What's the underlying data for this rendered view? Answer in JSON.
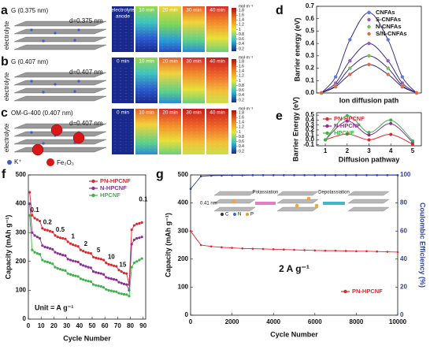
{
  "panels": [
    {
      "label": "a",
      "title": "G (0.375 nm)",
      "side_label": "electrolyte",
      "spacing": "d=0.375 nm",
      "tiles": [
        "electrolyte",
        "10 min",
        "20 min",
        "30 min",
        "40 min"
      ],
      "tile_note": "anode"
    },
    {
      "label": "b",
      "title": "G (0.407 nm)",
      "side_label": "electrolyte",
      "spacing": "d=0.407 nm",
      "tiles": [
        "0 min",
        "10 min",
        "20 min",
        "30 min",
        "40 min"
      ]
    },
    {
      "label": "c",
      "title": "OM-G-400 (0.407 nm)",
      "side_label": "electrolyte",
      "spacing": "d=0.407 nm",
      "tiles": [
        "0 min",
        "10 min",
        "20 min",
        "30 min",
        "40 min"
      ]
    }
  ],
  "colorbar": {
    "unit": "mol·m⁻³",
    "lim": [
      0.1,
      1.9
    ],
    "ticks": [
      1.8,
      1.6,
      1.4,
      1.2,
      1,
      0.8,
      0.6,
      0.4,
      0.2
    ]
  },
  "legend": [
    "K⁺",
    "Fe₂O₃"
  ],
  "chart_data": [
    {
      "label": "d",
      "type": "line",
      "smooth": true,
      "markers": true,
      "line_color": "#3d2a80",
      "ylabel": "Barrier energy (eV)",
      "xlabel": "Ion diffusion path",
      "legend": "upper right",
      "x": [
        0,
        0.15,
        0.3,
        0.5,
        0.7,
        0.85,
        1
      ],
      "xlim": [
        -0.05,
        1.05
      ],
      "ylim": [
        0,
        0.7
      ],
      "yticks": [
        {
          "value": 0,
          "label": "0.0"
        },
        0.1,
        0.2,
        0.3,
        0.4,
        0.5,
        0.6,
        0.7
      ],
      "series": [
        {
          "name": "CNFAs",
          "color": "#5b7be0",
          "values": [
            0,
            0.13,
            0.43,
            0.65,
            0.43,
            0.13,
            0
          ]
        },
        {
          "name": "S-CNFAs",
          "color": "#9b59c6",
          "values": [
            0,
            0.08,
            0.26,
            0.4,
            0.26,
            0.08,
            0
          ]
        },
        {
          "name": "N-CNFAs",
          "color": "#6fc24a",
          "values": [
            0,
            0.06,
            0.2,
            0.3,
            0.2,
            0.06,
            0
          ]
        },
        {
          "name": "S/N-CNFAs",
          "color": "#e86a3a",
          "values": [
            0,
            0.05,
            0.15,
            0.23,
            0.15,
            0.05,
            0
          ]
        }
      ]
    },
    {
      "label": "e",
      "type": "line",
      "smooth": true,
      "markers": true,
      "ylabel": "Barrier Energy (eV)",
      "xlabel": "Diffusion pathway",
      "legend": "upper left",
      "x": [
        1,
        2,
        3,
        4,
        5
      ],
      "xlim": [
        0.6,
        5.4
      ],
      "xticks": [
        1,
        2,
        3,
        4,
        5
      ],
      "ylim": [
        -0.12,
        0.55
      ],
      "yticks": [
        -0.1,
        {
          "value": 0,
          "label": "0.0"
        },
        0.1,
        0.2,
        0.3,
        0.4,
        0.5
      ],
      "series": [
        {
          "name": "PN-HPCNF",
          "color": "#e3262e",
          "values": [
            0,
            0.12,
            0,
            0.11,
            -0.09
          ]
        },
        {
          "name": "N-HPCNF",
          "color": "#8b2f97",
          "values": [
            0,
            0.38,
            0.1,
            0.33,
            -0.05
          ]
        },
        {
          "name": "HPCNF",
          "color": "#3fb24c",
          "values": [
            0,
            0.49,
            0.15,
            0.4,
            -0.02
          ]
        }
      ]
    },
    {
      "label": "f",
      "type": "line",
      "markers": true,
      "ylabel": "Capacity (mAh g⁻¹)",
      "xlabel": "Cycle Number",
      "legend": "upper right",
      "annotations": [
        "0.1",
        "0.2",
        "0.5",
        "1",
        "2",
        "5",
        "10",
        "15",
        "0.1"
      ],
      "note": "Unit = A g⁻¹",
      "x": [
        1,
        3,
        5,
        7,
        9,
        11,
        13,
        15,
        17,
        19,
        21,
        23,
        25,
        27,
        29,
        31,
        33,
        35,
        37,
        39,
        41,
        43,
        45,
        47,
        49,
        51,
        53,
        55,
        57,
        59,
        61,
        63,
        65,
        67,
        69,
        71,
        73,
        75,
        77,
        79,
        81,
        83,
        85,
        87,
        89
      ],
      "xlim": [
        0,
        92
      ],
      "xticks": [
        0,
        10,
        20,
        30,
        40,
        50,
        60,
        70,
        80,
        90
      ],
      "ylim": [
        0,
        500
      ],
      "yticks": [
        0,
        100,
        200,
        300,
        400,
        500
      ],
      "series": [
        {
          "name": "PN-HPCNF",
          "color": "#e3262e",
          "values": [
            440,
            360,
            350,
            345,
            340,
            315,
            310,
            308,
            305,
            302,
            290,
            285,
            282,
            280,
            278,
            268,
            262,
            258,
            255,
            252,
            240,
            236,
            232,
            230,
            228,
            215,
            212,
            210,
            208,
            205,
            195,
            190,
            188,
            185,
            183,
            170,
            165,
            160,
            158,
            120,
            310,
            325,
            330,
            332,
            335
          ]
        },
        {
          "name": "N-HPCNF",
          "color": "#8b2f97",
          "values": [
            400,
            300,
            290,
            285,
            280,
            255,
            250,
            248,
            245,
            242,
            232,
            228,
            225,
            222,
            220,
            208,
            205,
            202,
            200,
            198,
            190,
            186,
            183,
            180,
            178,
            165,
            162,
            160,
            158,
            155,
            145,
            142,
            140,
            138,
            136,
            128,
            125,
            122,
            120,
            100,
            260,
            275,
            280,
            282,
            285
          ]
        },
        {
          "name": "HPCNF",
          "color": "#3fb24c",
          "values": [
            360,
            240,
            232,
            228,
            225,
            205,
            200,
            198,
            195,
            192,
            180,
            176,
            173,
            170,
            168,
            158,
            155,
            152,
            150,
            148,
            140,
            137,
            134,
            132,
            130,
            120,
            117,
            115,
            113,
            110,
            103,
            100,
            98,
            96,
            95,
            90,
            88,
            86,
            85,
            80,
            180,
            195,
            200,
            205,
            210
          ]
        }
      ]
    },
    {
      "label": "g",
      "type": "line",
      "markers": true,
      "ylabel": "Capacity (mAh g⁻¹)",
      "y2label": "Coulombic Efficiency (%)",
      "xlabel": "Cycle Number",
      "legend": "lower right",
      "annotation": "2 A g⁻¹",
      "inset": {
        "spacing": "0.41 nm",
        "forward": "Potassiation",
        "backward": "Depotassiation",
        "atoms": [
          "C",
          "N",
          "P"
        ]
      },
      "x": [
        0,
        500,
        1000,
        1500,
        2000,
        2500,
        3000,
        3500,
        4000,
        4500,
        5000,
        5500,
        6000,
        6500,
        7000,
        7500,
        8000,
        8500,
        9000,
        9500,
        10000
      ],
      "xlim": [
        0,
        10000
      ],
      "xticks": [
        0,
        2000,
        4000,
        6000,
        8000,
        10000
      ],
      "ylim": [
        0,
        500
      ],
      "yticks": [
        0,
        100,
        200,
        300,
        400,
        500
      ],
      "y2lim": [
        0,
        100
      ],
      "y2ticks": [
        0,
        20,
        40,
        60,
        80,
        100
      ],
      "series": [
        {
          "name": "PN-HPCNF",
          "color": "#e3262e",
          "values": [
            300,
            250,
            245,
            242,
            240,
            238,
            237,
            236,
            235,
            234,
            233,
            232,
            231,
            230,
            230,
            229,
            228,
            228,
            227,
            226,
            225
          ]
        },
        {
          "color": "#2b3fa8",
          "axis": "y2",
          "values": [
            90,
            99,
            99.5,
            99.6,
            99.7,
            99.7,
            99.8,
            99.8,
            99.8,
            99.8,
            99.8,
            99.8,
            99.8,
            99.8,
            99.8,
            99.8,
            99.8,
            99.8,
            99.8,
            99.8,
            99.8
          ]
        }
      ]
    }
  ]
}
